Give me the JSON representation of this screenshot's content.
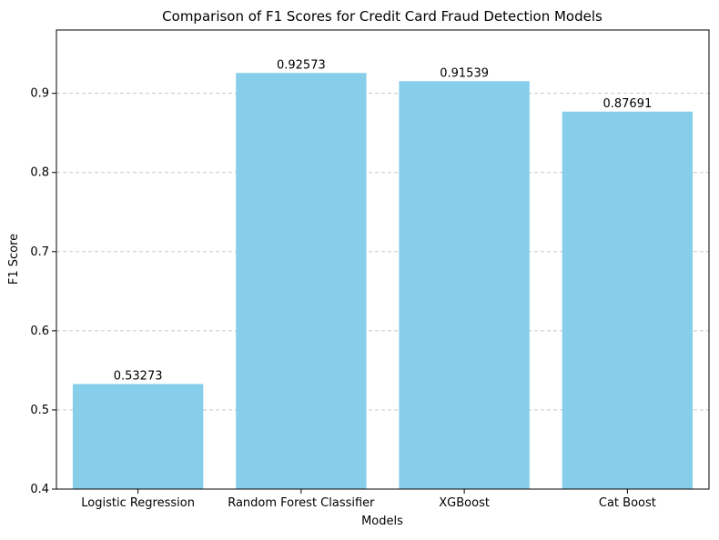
{
  "chart_data": {
    "type": "bar",
    "title": "Comparison of F1 Scores for Credit Card Fraud Detection Models",
    "xlabel": "Models",
    "ylabel": "F1 Score",
    "categories": [
      "Logistic Regression",
      "Random Forest Classifier",
      "XGBoost",
      "Cat Boost"
    ],
    "values": [
      0.53273,
      0.92573,
      0.91539,
      0.87691
    ],
    "data_labels": [
      "0.53273",
      "0.92573",
      "0.91539",
      "0.87691"
    ],
    "ylim": [
      0.4,
      0.98
    ],
    "yticks": [
      0.4,
      0.5,
      0.6,
      0.7,
      0.8,
      0.9
    ],
    "ytick_labels": [
      "0.4",
      "0.5",
      "0.6",
      "0.7",
      "0.8",
      "0.9"
    ],
    "grid": "y-dashed",
    "legend": "none",
    "colors": {
      "bar": "#87ceeb",
      "grid": "#c8c8c8",
      "axis": "#000000"
    }
  }
}
